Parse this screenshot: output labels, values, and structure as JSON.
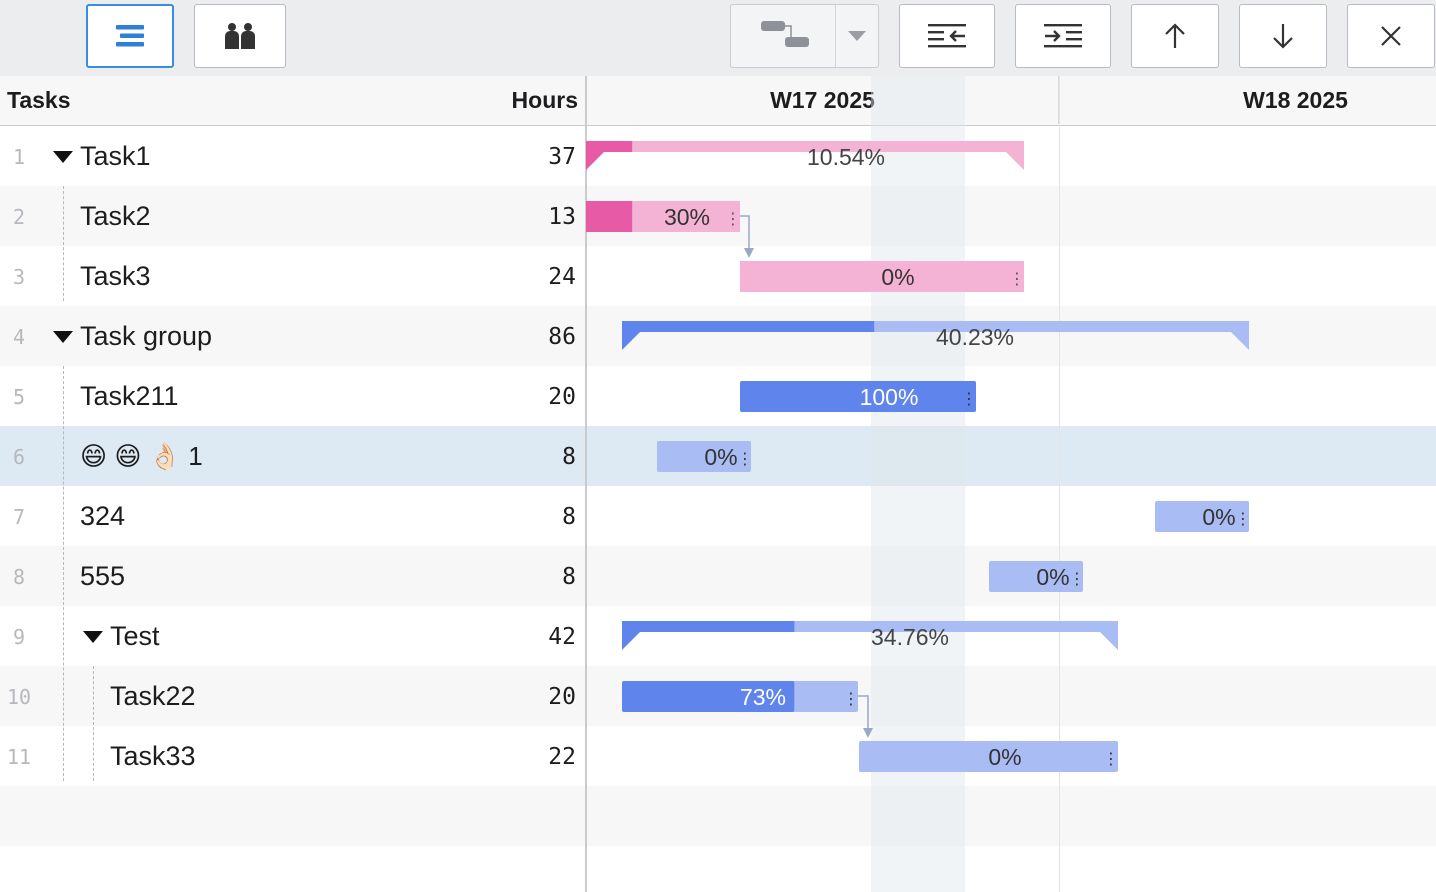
{
  "toolbar": {
    "buttons": [
      {
        "name": "grid-view-button",
        "icon": "list-icon",
        "active": true
      },
      {
        "name": "resources-view-button",
        "icon": "people-icon",
        "active": false
      },
      {
        "name": "link-type-button",
        "icon": "gantt-link-icon",
        "active": false
      },
      {
        "name": "outdent-button",
        "icon": "outdent-icon",
        "active": false
      },
      {
        "name": "indent-button",
        "icon": "indent-icon",
        "active": false
      },
      {
        "name": "move-up-button",
        "icon": "arrow-up-icon",
        "active": false
      },
      {
        "name": "move-down-button",
        "icon": "arrow-down-icon",
        "active": false
      },
      {
        "name": "delete-button",
        "icon": "close-icon",
        "active": false
      }
    ]
  },
  "header": {
    "tasks_label": "Tasks",
    "hours_label": "Hours",
    "weeks": [
      "W17 2025",
      "W18 2025"
    ]
  },
  "colors": {
    "pink_dark": "#e65aa6",
    "pink_light": "#f4b3d5",
    "blue_dark": "#5f85ec",
    "blue_light": "#a9bcf4",
    "selected_row": "#dde9f3"
  },
  "tasks": [
    {
      "num": "1",
      "name": "Task1",
      "hours": "37",
      "level": 0,
      "summary": true,
      "progress_label": "10.54%",
      "color": "pink"
    },
    {
      "num": "2",
      "name": "Task2",
      "hours": "13",
      "level": 1,
      "summary": false,
      "progress_label": "30%",
      "color": "pink"
    },
    {
      "num": "3",
      "name": "Task3",
      "hours": "24",
      "level": 1,
      "summary": false,
      "progress_label": "0%",
      "color": "pink"
    },
    {
      "num": "4",
      "name": "Task group",
      "hours": "86",
      "level": 0,
      "summary": true,
      "progress_label": "40.23%",
      "color": "blue"
    },
    {
      "num": "5",
      "name": "Task211",
      "hours": "20",
      "level": 1,
      "summary": false,
      "progress_label": "100%",
      "color": "blue"
    },
    {
      "num": "6",
      "name": "😄 😄 👌🏻 1",
      "hours": "8",
      "level": 1,
      "summary": false,
      "progress_label": "0%",
      "color": "blue",
      "selected": true
    },
    {
      "num": "7",
      "name": "324",
      "hours": "8",
      "level": 1,
      "summary": false,
      "progress_label": "0%",
      "color": "blue"
    },
    {
      "num": "8",
      "name": "555",
      "hours": "8",
      "level": 1,
      "summary": false,
      "progress_label": "0%",
      "color": "blue"
    },
    {
      "num": "9",
      "name": "Test",
      "hours": "42",
      "level": 1,
      "summary": true,
      "progress_label": "34.76%",
      "color": "blue"
    },
    {
      "num": "10",
      "name": "Task22",
      "hours": "20",
      "level": 2,
      "summary": false,
      "progress_label": "73%",
      "color": "blue"
    },
    {
      "num": "11",
      "name": "Task33",
      "hours": "22",
      "level": 2,
      "summary": false,
      "progress_label": "0%",
      "color": "blue"
    }
  ],
  "progress": [
    0.1054,
    0.3,
    0.0,
    0.4023,
    1.0,
    0.0,
    0.0,
    0.0,
    0.3476,
    0.73,
    0.0
  ],
  "dependencies": [
    {
      "from": "Task2",
      "to": "Task3"
    },
    {
      "from": "Task22",
      "to": "Task33"
    }
  ]
}
